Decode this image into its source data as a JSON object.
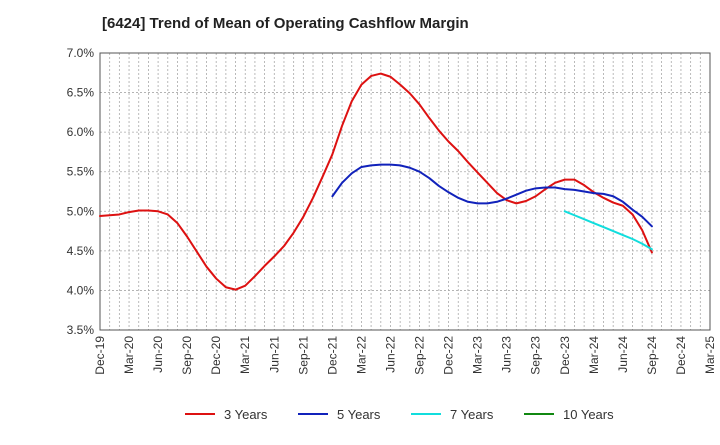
{
  "chart_data": {
    "type": "line",
    "title": "[6424]  Trend of Mean of Operating Cashflow Margin",
    "xlabel": "",
    "ylabel": "",
    "x_ticks": [
      "Dec-19",
      "Mar-20",
      "Jun-20",
      "Sep-20",
      "Dec-20",
      "Mar-21",
      "Jun-21",
      "Sep-21",
      "Dec-21",
      "Mar-22",
      "Jun-22",
      "Sep-22",
      "Dec-22",
      "Mar-23",
      "Jun-23",
      "Sep-23",
      "Dec-23",
      "Mar-24",
      "Jun-24",
      "Sep-24",
      "Dec-24",
      "Mar-25"
    ],
    "y_ticks": [
      "3.5%",
      "4.0%",
      "4.5%",
      "5.0%",
      "5.5%",
      "6.0%",
      "6.5%",
      "7.0%"
    ],
    "ylim": [
      3.5,
      7.0
    ],
    "grid": true,
    "legend_position": "bottom",
    "series": [
      {
        "name": "3 Years",
        "color": "#dd1111",
        "x": [
          "Dec-19",
          "Jan-20",
          "Feb-20",
          "Mar-20",
          "Apr-20",
          "May-20",
          "Jun-20",
          "Jul-20",
          "Aug-20",
          "Sep-20",
          "Oct-20",
          "Nov-20",
          "Dec-20",
          "Jan-21",
          "Feb-21",
          "Mar-21",
          "Apr-21",
          "May-21",
          "Jun-21",
          "Jul-21",
          "Aug-21",
          "Sep-21",
          "Oct-21",
          "Nov-21",
          "Dec-21",
          "Jan-22",
          "Feb-22",
          "Mar-22",
          "Apr-22",
          "May-22",
          "Jun-22",
          "Jul-22",
          "Aug-22",
          "Sep-22",
          "Oct-22",
          "Nov-22",
          "Dec-22",
          "Jan-23",
          "Feb-23",
          "Mar-23",
          "Apr-23",
          "May-23",
          "Jun-23",
          "Jul-23",
          "Aug-23",
          "Sep-23",
          "Oct-23",
          "Nov-23",
          "Dec-23",
          "Jan-24",
          "Feb-24",
          "Mar-24",
          "Apr-24",
          "May-24",
          "Jun-24",
          "Jul-24",
          "Aug-24",
          "Sep-24"
        ],
        "values": [
          4.94,
          4.95,
          4.96,
          4.99,
          5.01,
          5.01,
          5.0,
          4.96,
          4.85,
          4.68,
          4.49,
          4.3,
          4.15,
          4.04,
          4.01,
          4.06,
          4.18,
          4.31,
          4.43,
          4.56,
          4.73,
          4.93,
          5.17,
          5.44,
          5.72,
          6.08,
          6.39,
          6.6,
          6.71,
          6.74,
          6.7,
          6.6,
          6.49,
          6.35,
          6.18,
          6.02,
          5.88,
          5.76,
          5.62,
          5.49,
          5.36,
          5.23,
          5.14,
          5.1,
          5.13,
          5.19,
          5.28,
          5.36,
          5.4,
          5.4,
          5.33,
          5.24,
          5.17,
          5.11,
          5.07,
          4.96,
          4.76,
          4.48
        ]
      },
      {
        "name": "5 Years",
        "color": "#1122bb",
        "x": [
          "Dec-21",
          "Jan-22",
          "Feb-22",
          "Mar-22",
          "Apr-22",
          "May-22",
          "Jun-22",
          "Jul-22",
          "Aug-22",
          "Sep-22",
          "Oct-22",
          "Nov-22",
          "Dec-22",
          "Jan-23",
          "Feb-23",
          "Mar-23",
          "Apr-23",
          "May-23",
          "Jun-23",
          "Jul-23",
          "Aug-23",
          "Sep-23",
          "Oct-23",
          "Nov-23",
          "Dec-23",
          "Jan-24",
          "Feb-24",
          "Mar-24",
          "Apr-24",
          "May-24",
          "Jun-24",
          "Jul-24",
          "Aug-24",
          "Sep-24"
        ],
        "values": [
          5.19,
          5.36,
          5.48,
          5.56,
          5.58,
          5.59,
          5.59,
          5.58,
          5.55,
          5.5,
          5.42,
          5.32,
          5.24,
          5.17,
          5.12,
          5.1,
          5.1,
          5.12,
          5.16,
          5.21,
          5.26,
          5.29,
          5.3,
          5.3,
          5.28,
          5.27,
          5.25,
          5.23,
          5.22,
          5.19,
          5.12,
          5.02,
          4.93,
          4.81
        ]
      },
      {
        "name": "7 Years",
        "color": "#11dddd",
        "x": [
          "Dec-23",
          "Jan-24",
          "Feb-24",
          "Mar-24",
          "Apr-24",
          "May-24",
          "Jun-24",
          "Jul-24",
          "Aug-24",
          "Sep-24"
        ],
        "values": [
          5.0,
          4.95,
          4.9,
          4.85,
          4.8,
          4.75,
          4.7,
          4.65,
          4.59,
          4.52
        ]
      },
      {
        "name": "10 Years",
        "color": "#118811",
        "x": [],
        "values": []
      }
    ]
  }
}
